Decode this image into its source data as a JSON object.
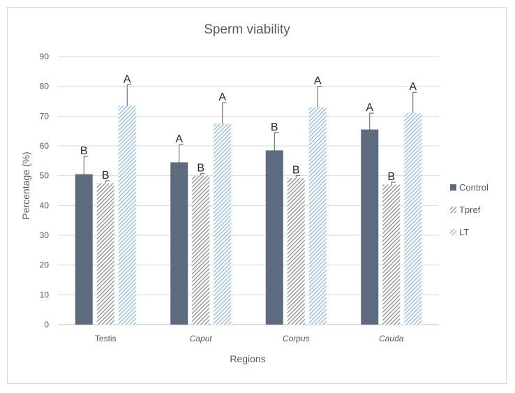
{
  "chart_data": {
    "type": "bar",
    "title": "Sperm viability",
    "xlabel": "Regions",
    "ylabel": "Percentage (%)",
    "ylim": [
      0,
      90
    ],
    "yticks": [
      0,
      10,
      20,
      30,
      40,
      50,
      60,
      70,
      80,
      90
    ],
    "grid": true,
    "legend_position": "right",
    "categories": [
      "Testis",
      "Caput",
      "Corpus",
      "Cauda"
    ],
    "category_italic": [
      false,
      true,
      true,
      true
    ],
    "series": [
      {
        "name": "Control",
        "color": "#5d6b7e",
        "pattern": "solid",
        "values": [
          50.5,
          54.5,
          58.5,
          65.5
        ],
        "errors": [
          6.0,
          6.0,
          6.0,
          5.5
        ],
        "letters": [
          "B",
          "A",
          "B",
          "A"
        ]
      },
      {
        "name": "Tpref",
        "color": "#a6a6a6",
        "pattern": "hatch",
        "values": [
          47.5,
          50.0,
          49.2,
          47.0
        ],
        "errors": [
          0.8,
          0.8,
          0.8,
          0.8
        ],
        "letters": [
          "B",
          "B",
          "B",
          "B"
        ]
      },
      {
        "name": "LT",
        "color": "#9dc3e6",
        "pattern": "hatch",
        "values": [
          73.5,
          67.5,
          73.0,
          71.0
        ],
        "errors": [
          7.0,
          7.0,
          7.0,
          7.0
        ],
        "letters": [
          "A",
          "A",
          "A",
          "A"
        ]
      }
    ]
  }
}
